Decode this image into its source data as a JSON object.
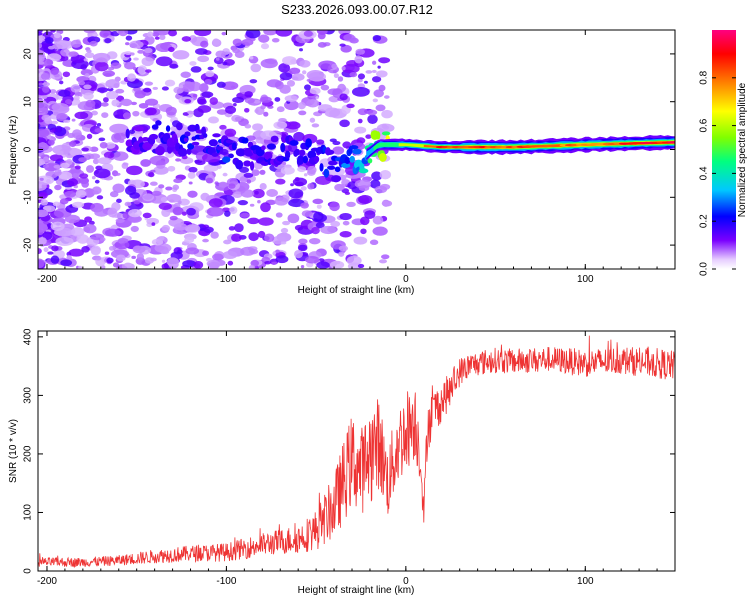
{
  "figure_title": "S233.2026.093.00.07.R12",
  "chart_data": [
    {
      "type": "heatmap",
      "name": "spectrogram",
      "xlabel": "Height of straight line (km)",
      "ylabel": "Frequency (Hz)",
      "xlim": [
        -205,
        150
      ],
      "ylim": [
        -25,
        25
      ],
      "xticks": [
        -200,
        -100,
        0,
        100
      ],
      "yticks": [
        -20,
        -10,
        0,
        10,
        20
      ],
      "colorbar": {
        "label": "Normalized spectral amplitude",
        "range": [
          0,
          1
        ],
        "ticks": [
          "0.0",
          "0.2",
          "0.4",
          "0.6",
          "0.8"
        ],
        "colors": [
          "#ffffff",
          "#7a00ff",
          "#0000ff",
          "#00c8ff",
          "#00ff7f",
          "#80ff00",
          "#ffff00",
          "#ff8000",
          "#ff0000",
          "#ff0080"
        ]
      },
      "ridge": {
        "description_points_x": [
          -150,
          -120,
          -100,
          -80,
          -60,
          -40,
          -25,
          -15,
          0,
          20,
          60,
          100,
          150
        ],
        "frequency_hz": [
          3,
          2,
          0,
          -1,
          0,
          -4,
          -2,
          1,
          1,
          0.5,
          0.5,
          1,
          1.5
        ],
        "amplitude": [
          0.15,
          0.18,
          0.2,
          0.15,
          0.18,
          0.2,
          0.3,
          0.5,
          0.6,
          0.9,
          0.85,
          0.8,
          0.95
        ]
      }
    },
    {
      "type": "line",
      "name": "snr",
      "xlabel": "Height of straight line (km)",
      "ylabel": "SNR (10 * v/v)",
      "xlim": [
        -205,
        150
      ],
      "ylim": [
        0,
        410
      ],
      "xticks": [
        -200,
        -100,
        0,
        100
      ],
      "yticks": [
        0,
        100,
        200,
        300,
        400
      ],
      "color": "#ee3333",
      "series": [
        {
          "name": "SNR",
          "x": [
            -205,
            -180,
            -160,
            -140,
            -120,
            -100,
            -80,
            -70,
            -60,
            -50,
            -45,
            -40,
            -35,
            -30,
            -25,
            -20,
            -15,
            -10,
            -5,
            0,
            5,
            8,
            10,
            12,
            15,
            20,
            25,
            30,
            35,
            40,
            50,
            60,
            80,
            100,
            120,
            140,
            150
          ],
          "mean": [
            15,
            15,
            18,
            25,
            30,
            32,
            45,
            50,
            55,
            70,
            90,
            110,
            150,
            190,
            170,
            200,
            220,
            150,
            210,
            240,
            260,
            200,
            95,
            250,
            270,
            290,
            310,
            340,
            350,
            355,
            360,
            358,
            362,
            355,
            360,
            355,
            350
          ],
          "noise": [
            8,
            8,
            9,
            12,
            14,
            16,
            20,
            22,
            25,
            35,
            45,
            55,
            70,
            80,
            75,
            85,
            80,
            60,
            70,
            70,
            70,
            50,
            20,
            50,
            40,
            35,
            30,
            25,
            22,
            22,
            22,
            22,
            22,
            24,
            24,
            26,
            26
          ]
        }
      ]
    }
  ]
}
